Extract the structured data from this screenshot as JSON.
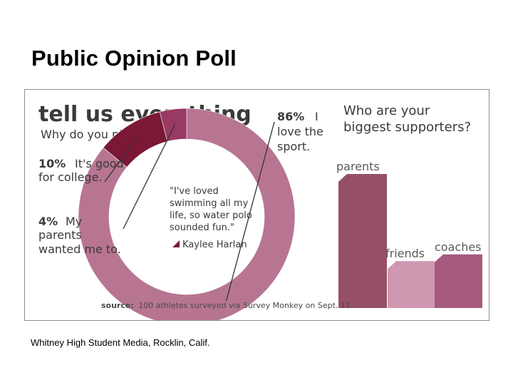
{
  "slide": {
    "title": "Public Opinion Poll",
    "caption": "Whitney High Student Media, Rocklin, Calif."
  },
  "infographic": {
    "headline": "tell us everything",
    "source_label": "source:",
    "source_text": "100 athletes surveyed via Survey Monkey on Sept. 11",
    "colors": {
      "primary": "#b77592",
      "dark": "#7a1836",
      "medium": "#983a62",
      "light": "#cf98b1",
      "bar_parents": "#955065",
      "bar_coaches": "#a65a7e"
    }
  },
  "chart_data": [
    {
      "type": "pie",
      "title": "Why do you play?",
      "slices": [
        {
          "pct_label": "86%",
          "label_lines": [
            "I",
            "love the",
            "sport."
          ],
          "value": 86
        },
        {
          "pct_label": "10%",
          "label_lines": [
            "It's good",
            "for college."
          ],
          "value": 10
        },
        {
          "pct_label": "4%",
          "label_lines": [
            "My",
            "parents",
            "wanted me to."
          ],
          "value": 4
        }
      ],
      "quote_lines": [
        "\"I've loved",
        "swimming all my",
        "life, so water polo",
        "sounded fun.\""
      ],
      "quote_author": "Kaylee Harlan"
    },
    {
      "type": "bar",
      "title_lines": [
        "Who are your",
        "biggest supporters?"
      ],
      "categories": [
        "parents",
        "friends",
        "coaches"
      ],
      "values": [
        100,
        35,
        40
      ],
      "ylim": [
        0,
        100
      ]
    }
  ]
}
